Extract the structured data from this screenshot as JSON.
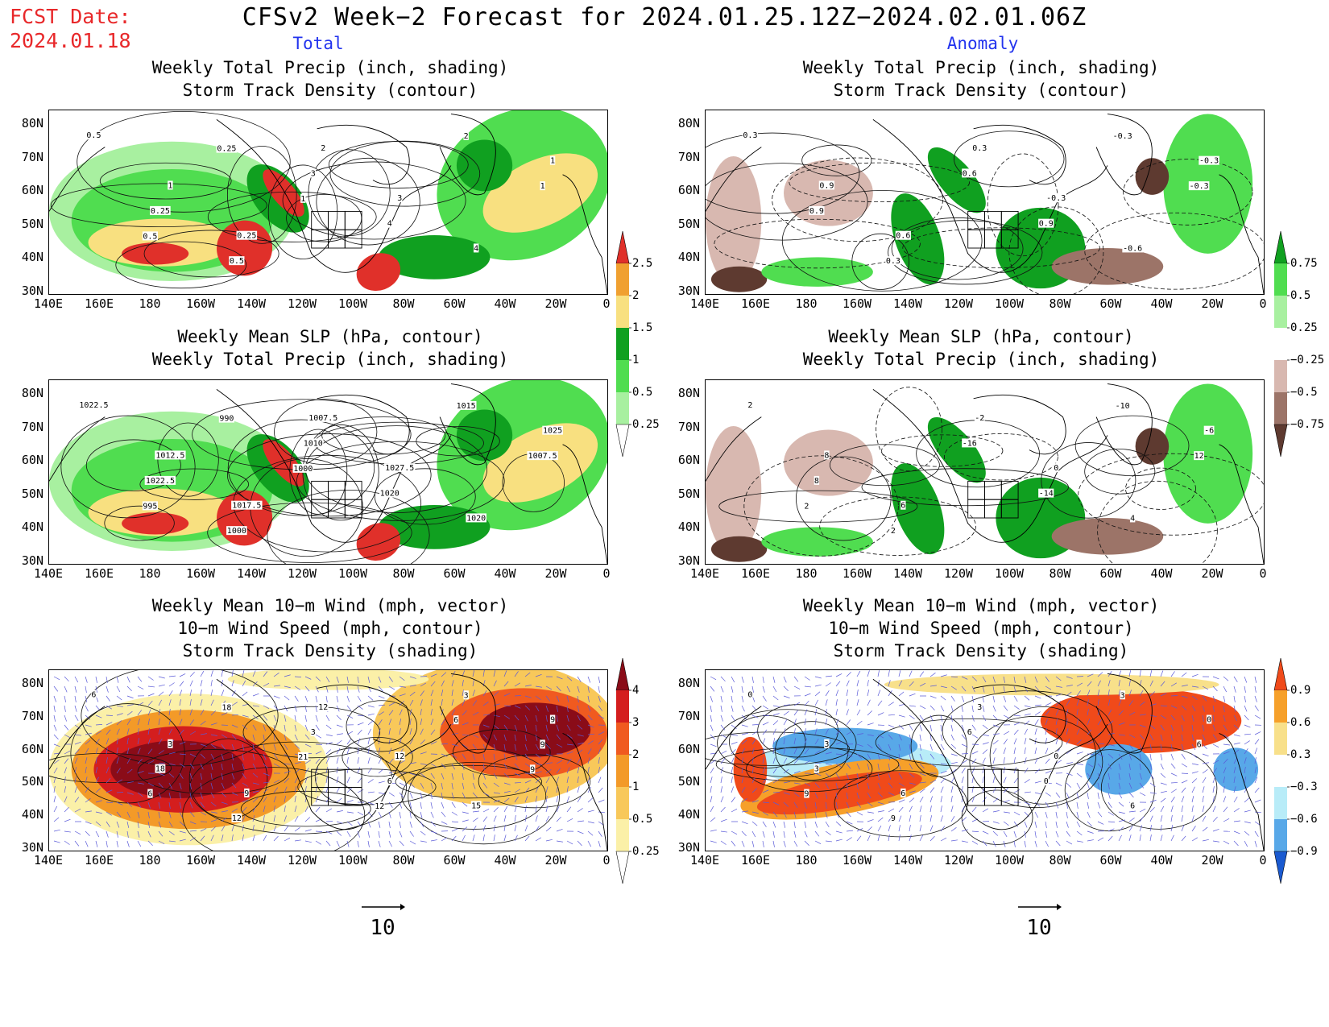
{
  "fcst_date_label": "FCST Date:",
  "fcst_date_value": "2024.01.18",
  "title": "CFSv2 Week−2 Forecast for 2024.01.25.12Z−2024.02.01.06Z",
  "column_left": "Total",
  "column_right": "Anomaly",
  "panels": {
    "top_left": {
      "title1": "Weekly Total Precip (inch, shading)",
      "title2": "Storm Track Density (contour)"
    },
    "top_right": {
      "title1": "Weekly Total Precip (inch, shading)",
      "title2": "Storm Track Density (contour)"
    },
    "mid_left": {
      "title1": "Weekly Mean SLP (hPa, contour)",
      "title2": "Weekly Total Precip (inch, shading)"
    },
    "mid_right": {
      "title1": "Weekly Mean SLP (hPa, contour)",
      "title2": "Weekly Total Precip (inch, shading)"
    },
    "bot_left": {
      "title1": "Weekly Mean 10−m Wind (mph, vector)",
      "title2": "10−m Wind Speed (mph, contour)",
      "title3": "Storm Track Density (shading)"
    },
    "bot_right": {
      "title1": "Weekly Mean 10−m Wind (mph, vector)",
      "title2": "10−m Wind Speed (mph, contour)",
      "title3": "Storm Track Density (shading)"
    }
  },
  "lat_ticks": [
    "80N",
    "70N",
    "60N",
    "50N",
    "40N",
    "30N"
  ],
  "lon_ticks": [
    "140E",
    "160E",
    "180",
    "160W",
    "140W",
    "120W",
    "100W",
    "80W",
    "60W",
    "40W",
    "20W",
    "0"
  ],
  "colorbars": {
    "precip_total": {
      "labels": [
        "2.5",
        "2",
        "1.5",
        "1",
        "0.5",
        "0.25"
      ],
      "colors": [
        "#e0302a",
        "#f0a030",
        "#f8e080",
        "#10a020",
        "#50dd50",
        "#a8f0a0",
        "#ffffff"
      ]
    },
    "precip_anom": {
      "labels": [
        "0.75",
        "0.5",
        "0.25",
        "−0.25",
        "−0.5",
        "−0.75"
      ],
      "colors": [
        "#10a020",
        "#50dd50",
        "#a8f0a0",
        "#ffffff",
        "#d8b8b0",
        "#9c7468",
        "#5e3a30"
      ]
    },
    "storm_total": {
      "labels": [
        "4",
        "3",
        "2",
        "1",
        "0.5",
        "0.25"
      ],
      "colors": [
        "#8a0c18",
        "#d41e1e",
        "#f05a20",
        "#f39a28",
        "#f8c85a",
        "#fbf0a8",
        "#ffffff"
      ]
    },
    "storm_anom": {
      "labels": [
        "0.9",
        "0.6",
        "0.3",
        "−0.3",
        "−0.6",
        "−0.9"
      ],
      "colors": [
        "#f04a1a",
        "#f6a02a",
        "#f8e08a",
        "#ffffff",
        "#b8ecf8",
        "#58a8e8",
        "#1a5ad0"
      ]
    }
  },
  "reference_vector": {
    "label": "10"
  },
  "contour_labels": {
    "top_left": [
      "0.5",
      "1",
      "0.25",
      "2",
      "3",
      "4",
      "1",
      "0.25",
      "0.5",
      "3",
      "4",
      "2",
      "1",
      "0.5",
      "0.25",
      "1"
    ],
    "top_right": [
      "0.3",
      "0.9",
      "0.6",
      "0.3",
      "-0.3",
      "-0.6",
      "-0.3",
      "0.9",
      "0.3",
      "0.6",
      "0.9",
      "-0.3",
      "-0.3"
    ],
    "mid_left": [
      "1022.5",
      "1012.5",
      "1017.5",
      "1007.5",
      "1027.5",
      "1020",
      "1025",
      "1022.5",
      "1000",
      "1010",
      "1020",
      "1015",
      "1007.5",
      "995",
      "990",
      "1000"
    ],
    "mid_right": [
      "2",
      "8",
      "6",
      "-2",
      "0",
      "4",
      "-6",
      "8",
      "2",
      "-16",
      "-14",
      "-10",
      "12",
      "2"
    ],
    "bot_left": [
      "6",
      "3",
      "9",
      "12",
      "12",
      "15",
      "9",
      "18",
      "12",
      "3",
      "6",
      "3",
      "9",
      "6",
      "18",
      "21",
      "12",
      "6",
      "9"
    ],
    "bot_right": [
      "0",
      "3",
      "6",
      "3",
      "0",
      "6",
      "0",
      "3",
      "9",
      "6",
      "0",
      "3",
      "6",
      "9"
    ]
  }
}
